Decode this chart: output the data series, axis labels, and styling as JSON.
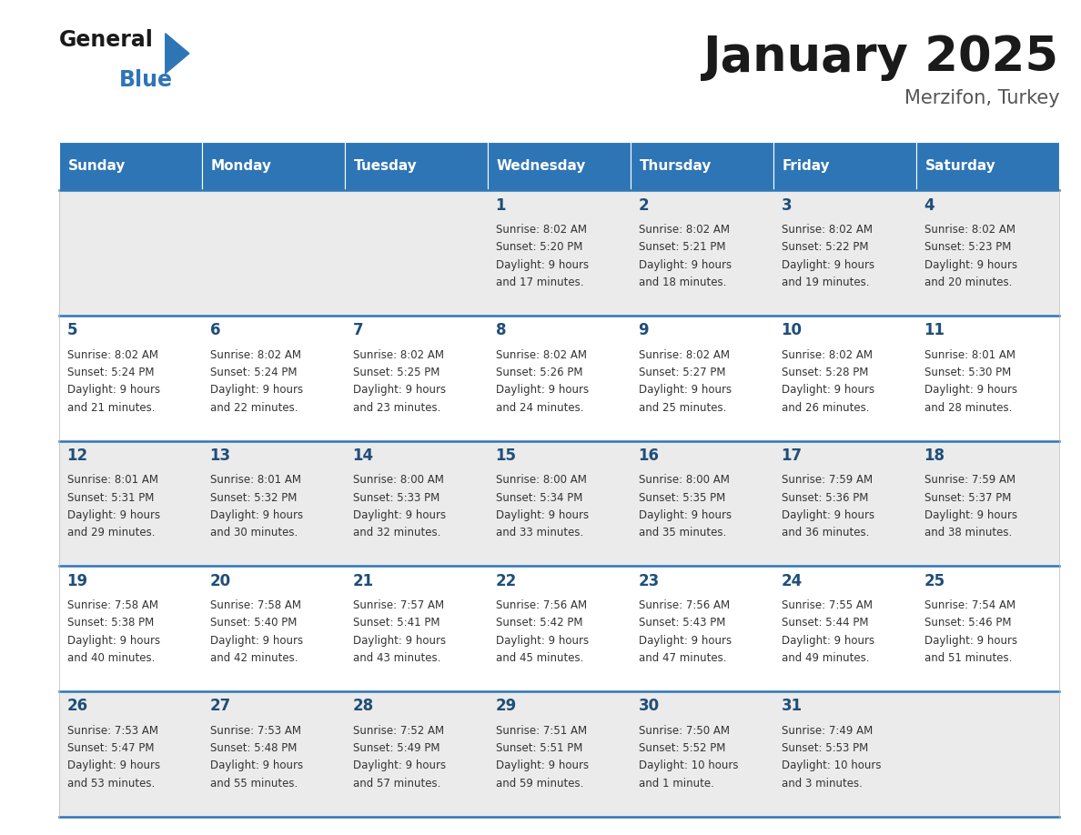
{
  "title": "January 2025",
  "subtitle": "Merzifon, Turkey",
  "days_of_week": [
    "Sunday",
    "Monday",
    "Tuesday",
    "Wednesday",
    "Thursday",
    "Friday",
    "Saturday"
  ],
  "header_bg": "#2E75B6",
  "header_text_color": "#FFFFFF",
  "row_bg_even": "#EBEBEB",
  "row_bg_odd": "#FFFFFF",
  "cell_text_color": "#333333",
  "day_num_color": "#1F4E79",
  "separator_color": "#2E75B6",
  "calendar_data": [
    [
      null,
      null,
      null,
      {
        "day": 1,
        "sunrise": "8:02 AM",
        "sunset": "5:20 PM",
        "daylight": "9 hours and 17 minutes"
      },
      {
        "day": 2,
        "sunrise": "8:02 AM",
        "sunset": "5:21 PM",
        "daylight": "9 hours and 18 minutes"
      },
      {
        "day": 3,
        "sunrise": "8:02 AM",
        "sunset": "5:22 PM",
        "daylight": "9 hours and 19 minutes"
      },
      {
        "day": 4,
        "sunrise": "8:02 AM",
        "sunset": "5:23 PM",
        "daylight": "9 hours and 20 minutes"
      }
    ],
    [
      {
        "day": 5,
        "sunrise": "8:02 AM",
        "sunset": "5:24 PM",
        "daylight": "9 hours and 21 minutes"
      },
      {
        "day": 6,
        "sunrise": "8:02 AM",
        "sunset": "5:24 PM",
        "daylight": "9 hours and 22 minutes"
      },
      {
        "day": 7,
        "sunrise": "8:02 AM",
        "sunset": "5:25 PM",
        "daylight": "9 hours and 23 minutes"
      },
      {
        "day": 8,
        "sunrise": "8:02 AM",
        "sunset": "5:26 PM",
        "daylight": "9 hours and 24 minutes"
      },
      {
        "day": 9,
        "sunrise": "8:02 AM",
        "sunset": "5:27 PM",
        "daylight": "9 hours and 25 minutes"
      },
      {
        "day": 10,
        "sunrise": "8:02 AM",
        "sunset": "5:28 PM",
        "daylight": "9 hours and 26 minutes"
      },
      {
        "day": 11,
        "sunrise": "8:01 AM",
        "sunset": "5:30 PM",
        "daylight": "9 hours and 28 minutes"
      }
    ],
    [
      {
        "day": 12,
        "sunrise": "8:01 AM",
        "sunset": "5:31 PM",
        "daylight": "9 hours and 29 minutes"
      },
      {
        "day": 13,
        "sunrise": "8:01 AM",
        "sunset": "5:32 PM",
        "daylight": "9 hours and 30 minutes"
      },
      {
        "day": 14,
        "sunrise": "8:00 AM",
        "sunset": "5:33 PM",
        "daylight": "9 hours and 32 minutes"
      },
      {
        "day": 15,
        "sunrise": "8:00 AM",
        "sunset": "5:34 PM",
        "daylight": "9 hours and 33 minutes"
      },
      {
        "day": 16,
        "sunrise": "8:00 AM",
        "sunset": "5:35 PM",
        "daylight": "9 hours and 35 minutes"
      },
      {
        "day": 17,
        "sunrise": "7:59 AM",
        "sunset": "5:36 PM",
        "daylight": "9 hours and 36 minutes"
      },
      {
        "day": 18,
        "sunrise": "7:59 AM",
        "sunset": "5:37 PM",
        "daylight": "9 hours and 38 minutes"
      }
    ],
    [
      {
        "day": 19,
        "sunrise": "7:58 AM",
        "sunset": "5:38 PM",
        "daylight": "9 hours and 40 minutes"
      },
      {
        "day": 20,
        "sunrise": "7:58 AM",
        "sunset": "5:40 PM",
        "daylight": "9 hours and 42 minutes"
      },
      {
        "day": 21,
        "sunrise": "7:57 AM",
        "sunset": "5:41 PM",
        "daylight": "9 hours and 43 minutes"
      },
      {
        "day": 22,
        "sunrise": "7:56 AM",
        "sunset": "5:42 PM",
        "daylight": "9 hours and 45 minutes"
      },
      {
        "day": 23,
        "sunrise": "7:56 AM",
        "sunset": "5:43 PM",
        "daylight": "9 hours and 47 minutes"
      },
      {
        "day": 24,
        "sunrise": "7:55 AM",
        "sunset": "5:44 PM",
        "daylight": "9 hours and 49 minutes"
      },
      {
        "day": 25,
        "sunrise": "7:54 AM",
        "sunset": "5:46 PM",
        "daylight": "9 hours and 51 minutes"
      }
    ],
    [
      {
        "day": 26,
        "sunrise": "7:53 AM",
        "sunset": "5:47 PM",
        "daylight": "9 hours and 53 minutes"
      },
      {
        "day": 27,
        "sunrise": "7:53 AM",
        "sunset": "5:48 PM",
        "daylight": "9 hours and 55 minutes"
      },
      {
        "day": 28,
        "sunrise": "7:52 AM",
        "sunset": "5:49 PM",
        "daylight": "9 hours and 57 minutes"
      },
      {
        "day": 29,
        "sunrise": "7:51 AM",
        "sunset": "5:51 PM",
        "daylight": "9 hours and 59 minutes"
      },
      {
        "day": 30,
        "sunrise": "7:50 AM",
        "sunset": "5:52 PM",
        "daylight": "10 hours and 1 minute"
      },
      {
        "day": 31,
        "sunrise": "7:49 AM",
        "sunset": "5:53 PM",
        "daylight": "10 hours and 3 minutes"
      },
      null
    ]
  ],
  "logo_triangle_color": "#2E75B6",
  "title_fontsize": 38,
  "subtitle_fontsize": 15,
  "header_fontsize": 11,
  "day_num_fontsize": 12,
  "cell_fontsize": 8.5
}
